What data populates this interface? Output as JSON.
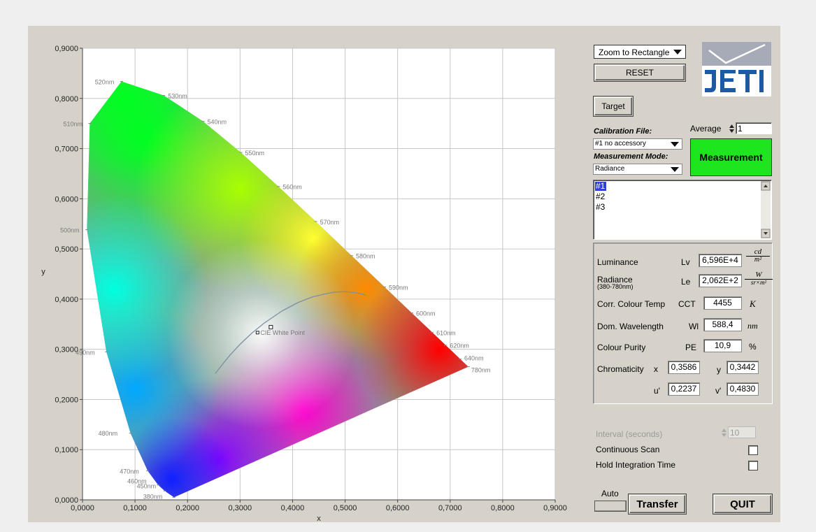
{
  "chart": {
    "x_ticks": [
      "0,0000",
      "0,1000",
      "0,2000",
      "0,3000",
      "0,4000",
      "0,5000",
      "0,6000",
      "0,7000",
      "0,8000",
      "0,9000"
    ],
    "y_ticks": [
      "0,0000",
      "0,1000",
      "0,2000",
      "0,3000",
      "0,4000",
      "0,5000",
      "0,6000",
      "0,7000",
      "0,8000",
      "0,9000"
    ],
    "xlabel": "x",
    "ylabel": "y",
    "white_point_label": "CIE White Point",
    "wavelength_labels": [
      "380nm",
      "450nm",
      "460nm",
      "470nm",
      "480nm",
      "490nm",
      "500nm",
      "510nm",
      "520nm",
      "530nm",
      "540nm",
      "550nm",
      "560nm",
      "570nm",
      "580nm",
      "590nm",
      "600nm",
      "610nm",
      "620nm",
      "640nm",
      "780nm"
    ]
  },
  "chart_data": {
    "type": "scatter",
    "xlabel": "x",
    "ylabel": "y",
    "xlim": [
      0,
      0.9
    ],
    "ylim": [
      0,
      0.9
    ],
    "grid": true,
    "locus": [
      {
        "nm": "380nm",
        "x": 0.1741,
        "y": 0.005
      },
      {
        "nm": "450nm",
        "x": 0.1566,
        "y": 0.0177
      },
      {
        "nm": "460nm",
        "x": 0.144,
        "y": 0.0297
      },
      {
        "nm": "470nm",
        "x": 0.1241,
        "y": 0.0578
      },
      {
        "nm": "480nm",
        "x": 0.0913,
        "y": 0.1327
      },
      {
        "nm": "490nm",
        "x": 0.0454,
        "y": 0.295
      },
      {
        "nm": "500nm",
        "x": 0.0082,
        "y": 0.5384
      },
      {
        "nm": "510nm",
        "x": 0.0139,
        "y": 0.7502
      },
      {
        "nm": "520nm",
        "x": 0.0743,
        "y": 0.8338
      },
      {
        "nm": "530nm",
        "x": 0.1547,
        "y": 0.8059
      },
      {
        "nm": "540nm",
        "x": 0.2296,
        "y": 0.7543
      },
      {
        "nm": "550nm",
        "x": 0.3016,
        "y": 0.6923
      },
      {
        "nm": "560nm",
        "x": 0.3731,
        "y": 0.6245
      },
      {
        "nm": "570nm",
        "x": 0.4441,
        "y": 0.5547
      },
      {
        "nm": "580nm",
        "x": 0.5125,
        "y": 0.4866
      },
      {
        "nm": "590nm",
        "x": 0.5752,
        "y": 0.4242
      },
      {
        "nm": "600nm",
        "x": 0.627,
        "y": 0.3725
      },
      {
        "nm": "610nm",
        "x": 0.6658,
        "y": 0.334
      },
      {
        "nm": "620nm",
        "x": 0.6915,
        "y": 0.3083
      },
      {
        "nm": "640nm",
        "x": 0.719,
        "y": 0.2809
      },
      {
        "nm": "780nm",
        "x": 0.7347,
        "y": 0.2653
      }
    ],
    "white_point": {
      "label": "CIE White Point",
      "x": 0.3333,
      "y": 0.3333
    },
    "measured_point": {
      "x": 0.3586,
      "y": 0.3442
    },
    "planckian_locus": [
      {
        "x": 0.253,
        "y": 0.252
      },
      {
        "x": 0.265,
        "y": 0.268
      },
      {
        "x": 0.2806,
        "y": 0.2883
      },
      {
        "x": 0.3,
        "y": 0.31
      },
      {
        "x": 0.3221,
        "y": 0.3318
      },
      {
        "x": 0.3451,
        "y": 0.3516
      },
      {
        "x": 0.3805,
        "y": 0.3768
      },
      {
        "x": 0.41,
        "y": 0.393
      },
      {
        "x": 0.4369,
        "y": 0.4041
      },
      {
        "x": 0.46,
        "y": 0.41
      },
      {
        "x": 0.48,
        "y": 0.414
      },
      {
        "x": 0.5,
        "y": 0.415
      },
      {
        "x": 0.52,
        "y": 0.413
      },
      {
        "x": 0.54,
        "y": 0.408
      }
    ]
  },
  "controls": {
    "zoom_select": "Zoom to Rectangle",
    "reset_label": "RESET",
    "target_label": "Target",
    "average_label": "Average",
    "average_value": "1",
    "calibration_label": "Calibration File:",
    "calibration_value": "#1  no accessory",
    "mode_label": "Measurement Mode:",
    "mode_value": "Radiance",
    "measure_label": "Measurement",
    "list_items": [
      "#1",
      "#2",
      "#3"
    ]
  },
  "results": {
    "luminance": {
      "label": "Luminance",
      "symbol": "Lv",
      "value": "6,596E+4",
      "unit_num": "cd",
      "unit_den": "m²"
    },
    "radiance": {
      "label": "Radiance",
      "sublabel": "(380-780nm)",
      "symbol": "Le",
      "value": "2,062E+2",
      "unit_num": "W",
      "unit_den": "sr×m²"
    },
    "cct": {
      "label": "Corr. Colour Temp",
      "symbol": "CCT",
      "value": "4455",
      "unit": "K"
    },
    "dominant": {
      "label": "Dom. Wavelength",
      "symbol": "Wl",
      "value": "588,4",
      "unit": "nm"
    },
    "purity": {
      "label": "Colour Purity",
      "symbol": "PE",
      "value": "10,9",
      "unit": "%"
    },
    "chromaticity": {
      "label": "Chromaticity",
      "x_label": "x",
      "x_value": "0,3586",
      "y_label": "y",
      "y_value": "0,3442",
      "u_label": "u'",
      "u_value": "0,2237",
      "v_label": "v'",
      "v_value": "0,4830"
    }
  },
  "scan": {
    "interval_label": "Interval  (seconds)",
    "interval_value": "10",
    "continuous_label": "Continuous Scan",
    "hold_label": "Hold Integration Time"
  },
  "footer": {
    "auto_label": "Auto",
    "transfer_label": "Transfer",
    "quit_label": "QUIT"
  },
  "colors": {
    "measurement_button": "#1ee61e",
    "frame": "#d6d2c9",
    "locus_curve": "#7e8fa1"
  },
  "logo": {
    "text": "JETI"
  }
}
